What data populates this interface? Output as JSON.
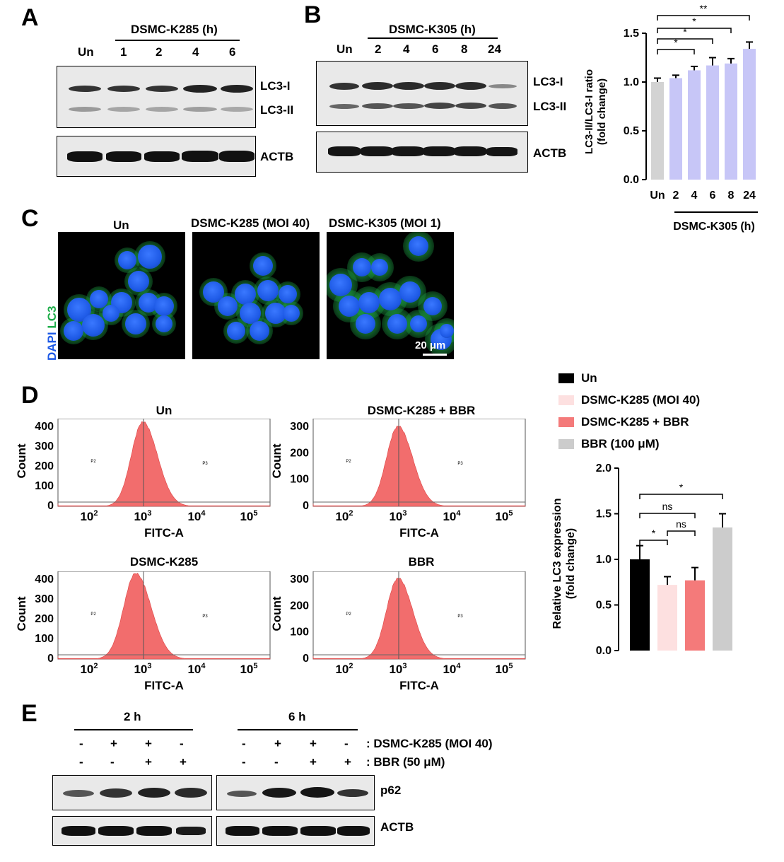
{
  "panels": {
    "A": "A",
    "B": "B",
    "C": "C",
    "D": "D",
    "E": "E"
  },
  "panelA": {
    "treatment": "DSMC-K285 (h)",
    "lanes": [
      "Un",
      "1",
      "2",
      "4",
      "6"
    ],
    "band_labels": [
      "LC3-I",
      "LC3-II",
      "ACTB"
    ]
  },
  "panelB": {
    "treatment": "DSMC-K305 (h)",
    "lanes": [
      "Un",
      "2",
      "4",
      "6",
      "8",
      "24"
    ],
    "band_labels": [
      "LC3-I",
      "LC3-II",
      "ACTB"
    ]
  },
  "panelC": {
    "titles": [
      "Un",
      "DSMC-K285 (MOI 40)",
      "DSMC-K305 (MOI 1)"
    ],
    "stain_dapi": "DAPI",
    "stain_lc3": "LC3",
    "scale_bar": "20 μm",
    "colors": {
      "dapi": "#1e5ae6",
      "lc3": "#1fae4a"
    }
  },
  "panelD": {
    "histograms": [
      {
        "title": "Un",
        "xlabel": "FITC-A",
        "ylabel": "Count",
        "yticks": [
          "400",
          "300",
          "200",
          "100",
          "0"
        ],
        "gate1": "P2",
        "gate2": "P3"
      },
      {
        "title": "DSMC-K285 + BBR",
        "xlabel": "FITC-A",
        "ylabel": "Count",
        "yticks": [
          "300",
          "200",
          "100",
          "0"
        ],
        "gate1": "P2",
        "gate2": "P3"
      },
      {
        "title": "DSMC-K285",
        "xlabel": "FITC-A",
        "ylabel": "Count",
        "yticks": [
          "400",
          "300",
          "200",
          "100",
          "0"
        ],
        "gate1": "P2",
        "gate2": "P3"
      },
      {
        "title": "BBR",
        "xlabel": "FITC-A",
        "ylabel": "Count",
        "yticks": [
          "300",
          "200",
          "100",
          "0"
        ],
        "gate1": "P2",
        "gate2": "P3"
      }
    ],
    "xtick_base": [
      "10",
      "10",
      "10",
      "10"
    ],
    "xtick_exp": [
      "2",
      "3",
      "4",
      "5"
    ],
    "hist_color": "#f26d6d",
    "legend": [
      {
        "label": "Un",
        "color": "#000000"
      },
      {
        "label": "DSMC-K285 (MOI 40)",
        "color": "#fde0e0"
      },
      {
        "label": "DSMC-K285 + BBR",
        "color": "#f47a7a"
      },
      {
        "label": "BBR (100 μM)",
        "color": "#cccccc"
      }
    ]
  },
  "panelE": {
    "time_groups": [
      "2 h",
      "6 h"
    ],
    "row1_signs": [
      "-",
      "+",
      "+",
      "-",
      "-",
      "+",
      "+",
      "-"
    ],
    "row2_signs": [
      "-",
      "-",
      "+",
      "+",
      "-",
      "-",
      "+",
      "+"
    ],
    "row1_label": ": DSMC-K285 (MOI 40)",
    "row2_label": ": BBR (50 μM)",
    "band_labels": [
      "p62",
      "ACTB"
    ]
  },
  "chart_data": [
    {
      "id": "panelB-bar",
      "type": "bar",
      "categories": [
        "Un",
        "2",
        "4",
        "6",
        "8",
        "24"
      ],
      "values": [
        1.0,
        1.04,
        1.12,
        1.17,
        1.19,
        1.34
      ],
      "errors": [
        0.04,
        0.03,
        0.04,
        0.08,
        0.05,
        0.07
      ],
      "colors": [
        "#d3d3d3",
        "#c7c6f7",
        "#c7c6f7",
        "#c7c6f7",
        "#c7c6f7",
        "#c7c6f7"
      ],
      "ylabel_line1": "LC3-II/LC3-I ratio",
      "ylabel_line2": "(fold change)",
      "xgroup_label": "DSMC-K305 (h)",
      "ylim": [
        0,
        1.5
      ],
      "yticks": [
        "0.0",
        "0.5",
        "1.0",
        "1.5"
      ],
      "significance": [
        {
          "from": "Un",
          "to": "4",
          "label": "*"
        },
        {
          "from": "Un",
          "to": "6",
          "label": "*"
        },
        {
          "from": "Un",
          "to": "8",
          "label": "*"
        },
        {
          "from": "Un",
          "to": "24",
          "label": "**"
        }
      ]
    },
    {
      "id": "panelD-bar",
      "type": "bar",
      "categories": [
        "Un",
        "DSMC-K285 (MOI 40)",
        "DSMC-K285 + BBR",
        "BBR (100 μM)"
      ],
      "values": [
        1.0,
        0.72,
        0.77,
        1.35
      ],
      "errors": [
        0.15,
        0.09,
        0.14,
        0.15
      ],
      "colors": [
        "#000000",
        "#fde0e0",
        "#f47a7a",
        "#cccccc"
      ],
      "ylabel_line1": "Relative LC3 expression",
      "ylabel_line2": "(fold change)",
      "ylim": [
        0,
        2.0
      ],
      "yticks": [
        "0.0",
        "0.5",
        "1.0",
        "1.5",
        "2.0"
      ],
      "significance": [
        {
          "from": "Un",
          "to": "DSMC-K285 (MOI 40)",
          "label": "*"
        },
        {
          "from": "DSMC-K285 (MOI 40)",
          "to": "DSMC-K285 + BBR",
          "label": "ns"
        },
        {
          "from": "Un",
          "to": "DSMC-K285 + BBR",
          "label": "ns"
        },
        {
          "from": "Un",
          "to": "BBR (100 μM)",
          "label": "*"
        }
      ]
    }
  ]
}
